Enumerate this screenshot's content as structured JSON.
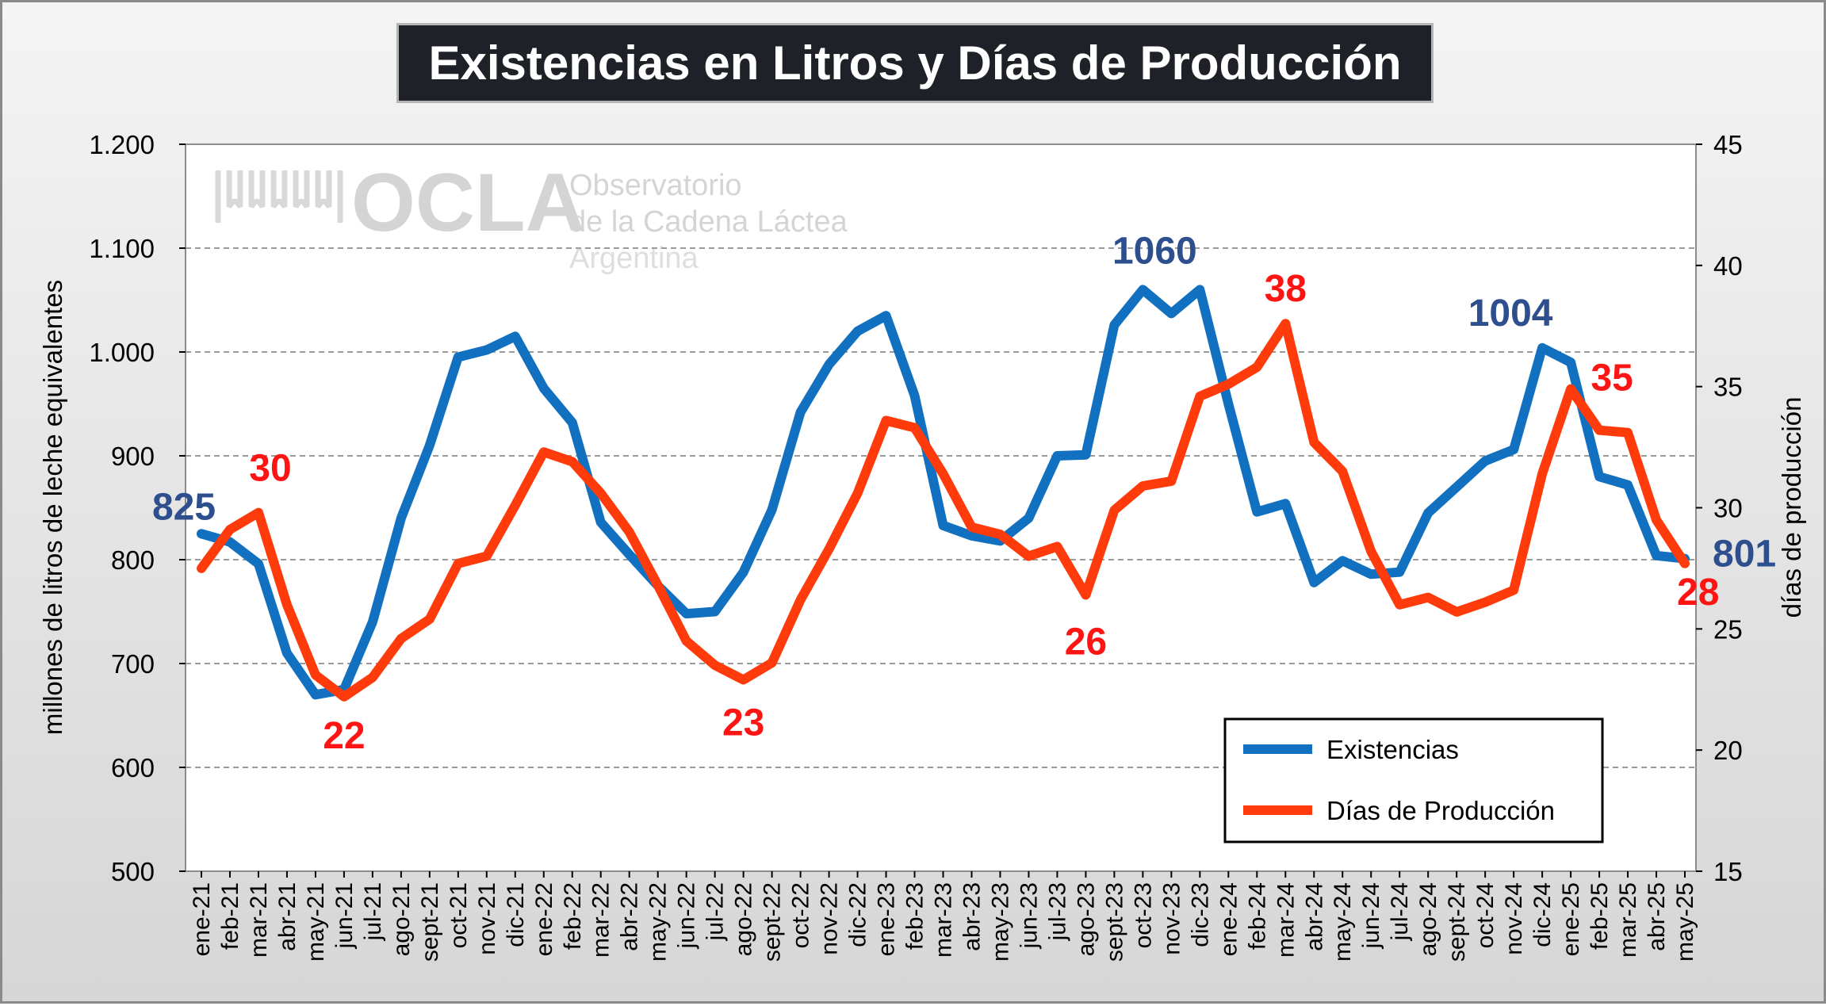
{
  "chart_data": {
    "type": "line",
    "title": "Existencias en Litros y Días de Producción",
    "ylabel_left": "millones de litros de leche equivalentes",
    "ylabel_right": "días de producción",
    "ylim_left": [
      500,
      1200
    ],
    "ylim_right": [
      15,
      45
    ],
    "yticks_left": [
      "500",
      "600",
      "700",
      "800",
      "900",
      "1.000",
      "1.100",
      "1.200"
    ],
    "yticks_right": [
      "15",
      "20",
      "25",
      "30",
      "35",
      "40",
      "45"
    ],
    "grid": true,
    "legend_position": "bottom-right",
    "categories": [
      "ene-21",
      "feb-21",
      "mar-21",
      "abr-21",
      "may-21",
      "jun-21",
      "jul-21",
      "ago-21",
      "sept-21",
      "oct-21",
      "nov-21",
      "dic-21",
      "ene-22",
      "feb-22",
      "mar-22",
      "abr-22",
      "may-22",
      "jun-22",
      "jul-22",
      "ago-22",
      "sept-22",
      "oct-22",
      "nov-22",
      "dic-22",
      "ene-23",
      "feb-23",
      "mar-23",
      "abr-23",
      "may-23",
      "jun-23",
      "jul-23",
      "ago-23",
      "sept-23",
      "oct-23",
      "nov-23",
      "dic-23",
      "ene-24",
      "feb-24",
      "mar-24",
      "abr-24",
      "may-24",
      "jun-24",
      "jul-24",
      "ago-24",
      "sept-24",
      "oct-24",
      "nov-24",
      "dic-24",
      "ene-25",
      "feb-25",
      "mar-25",
      "abr-25",
      "may-25"
    ],
    "series": [
      {
        "name": "Existencias",
        "axis": "left",
        "color": "#1170c0",
        "values": [
          825,
          817,
          796,
          710,
          670,
          675,
          740,
          840,
          910,
          995,
          1002,
          1015,
          965,
          932,
          836,
          805,
          775,
          748,
          750,
          788,
          848,
          942,
          988,
          1020,
          1035,
          958,
          833,
          823,
          818,
          840,
          900,
          901,
          1026,
          1060,
          1037,
          1060,
          950,
          846,
          854,
          778,
          799,
          786,
          788,
          845,
          870,
          895,
          906,
          1004,
          990,
          880,
          872,
          804,
          801
        ]
      },
      {
        "name": "Días de Producción",
        "axis": "right",
        "color": "#ff3b0c",
        "values": [
          27.5,
          29.1,
          29.8,
          26.0,
          23.1,
          22.2,
          23.0,
          24.6,
          25.4,
          27.7,
          28.0,
          30.1,
          32.3,
          31.9,
          30.6,
          29.0,
          26.8,
          24.5,
          23.5,
          22.9,
          23.6,
          26.2,
          28.3,
          30.6,
          33.6,
          33.3,
          31.4,
          29.2,
          28.9,
          28.0,
          28.4,
          26.4,
          29.9,
          30.9,
          31.1,
          34.6,
          35.1,
          35.8,
          37.6,
          32.7,
          31.5,
          28.2,
          26.0,
          26.3,
          25.7,
          26.1,
          26.6,
          31.4,
          34.9,
          33.2,
          33.1,
          29.5,
          27.7
        ]
      }
    ],
    "annotations": [
      {
        "series": "Existencias",
        "index": 0,
        "text": "825"
      },
      {
        "series": "Existencias",
        "index": 33,
        "text": "1060"
      },
      {
        "series": "Existencias",
        "index": 47,
        "text": "1004"
      },
      {
        "series": "Existencias",
        "index": 52,
        "text": "801"
      },
      {
        "series": "Días de Producción",
        "index": 2,
        "text": "30"
      },
      {
        "series": "Días de Producción",
        "index": 5,
        "text": "22"
      },
      {
        "series": "Días de Producción",
        "index": 19,
        "text": "23"
      },
      {
        "series": "Días de Producción",
        "index": 31,
        "text": "26"
      },
      {
        "series": "Días de Producción",
        "index": 38,
        "text": "38"
      },
      {
        "series": "Días de Producción",
        "index": 48,
        "text": "35"
      },
      {
        "series": "Días de Producción",
        "index": 52,
        "text": "28"
      }
    ],
    "watermark": {
      "brand": "OCLA",
      "line1": "Observatorio",
      "line2": "de la Cadena Láctea",
      "line3": "Argentina"
    }
  }
}
